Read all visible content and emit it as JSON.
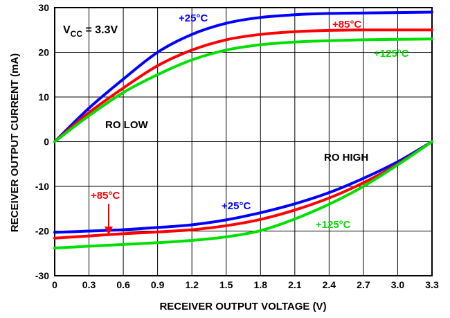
{
  "chart_data": {
    "type": "line",
    "title": "",
    "xlabel": "RECEIVER OUTPUT VOLTAGE (V)",
    "ylabel": "RECEIVER OUTPUT CURRENT (mA)",
    "xlim": [
      0,
      3.3
    ],
    "ylim": [
      -30,
      30
    ],
    "xticks": [
      "0",
      "0.3",
      "0.6",
      "0.9",
      "1.2",
      "1.5",
      "1.8",
      "2.1",
      "2.4",
      "2.7",
      "3.0",
      "3.3"
    ],
    "yticks": [
      "-30",
      "-20",
      "-10",
      "0",
      "10",
      "20",
      "30"
    ],
    "grid": true,
    "annotations": {
      "vcc": {
        "main": "V",
        "sub": "CC",
        "rest": " = 3.3V"
      },
      "ro_low": "RO LOW",
      "ro_high": "RO HIGH",
      "label_25_low": "+25°C",
      "label_85_low": "+85°C",
      "label_125_low": "+125°C",
      "label_25_high": "+25°C",
      "label_85_high": "+85°C",
      "label_125_high": "+125°C"
    },
    "colors": {
      "25": "#0000ff",
      "85": "#ff0000",
      "125": "#00e000"
    },
    "series": [
      {
        "name": "+25°C",
        "group": "RO LOW",
        "color": "#0000ff",
        "x": [
          0,
          0.3,
          0.6,
          0.9,
          1.2,
          1.5,
          1.8,
          2.1,
          2.4,
          2.7,
          3.0,
          3.3
        ],
        "y": [
          0,
          7.5,
          14,
          20,
          24,
          26.5,
          27.8,
          28.4,
          28.7,
          28.8,
          28.9,
          29
        ]
      },
      {
        "name": "+85°C",
        "group": "RO LOW",
        "color": "#ff0000",
        "x": [
          0,
          0.3,
          0.6,
          0.9,
          1.2,
          1.5,
          1.8,
          2.1,
          2.4,
          2.7,
          3.0,
          3.3
        ],
        "y": [
          0,
          6.5,
          12,
          17,
          20.5,
          22.8,
          24,
          24.6,
          24.9,
          25,
          25,
          25
        ]
      },
      {
        "name": "+125°C",
        "group": "RO LOW",
        "color": "#00e000",
        "x": [
          0,
          0.3,
          0.6,
          0.9,
          1.2,
          1.5,
          1.8,
          2.1,
          2.4,
          2.7,
          3.0,
          3.3
        ],
        "y": [
          0,
          5.8,
          11,
          15,
          18.3,
          20.5,
          21.7,
          22.3,
          22.6,
          22.8,
          22.9,
          23
        ]
      },
      {
        "name": "+25°C",
        "group": "RO HIGH",
        "color": "#0000ff",
        "x": [
          0,
          0.3,
          0.6,
          0.9,
          1.2,
          1.5,
          1.8,
          2.1,
          2.4,
          2.7,
          3.0,
          3.3
        ],
        "y": [
          -20.3,
          -20,
          -19.7,
          -19.2,
          -18.6,
          -17.5,
          -15.9,
          -13.9,
          -11.4,
          -8.2,
          -4.5,
          0
        ]
      },
      {
        "name": "+85°C",
        "group": "RO HIGH",
        "color": "#ff0000",
        "x": [
          0,
          0.3,
          0.6,
          0.9,
          1.2,
          1.5,
          1.8,
          2.1,
          2.4,
          2.7,
          3.0,
          3.3
        ],
        "y": [
          -21.6,
          -21.1,
          -20.6,
          -20.2,
          -19.7,
          -18.8,
          -17.4,
          -15.3,
          -12.6,
          -9.2,
          -5,
          0
        ]
      },
      {
        "name": "+125°C",
        "group": "RO HIGH",
        "color": "#00e000",
        "x": [
          0,
          0.3,
          0.6,
          0.9,
          1.2,
          1.5,
          1.8,
          2.1,
          2.4,
          2.7,
          3.0,
          3.3
        ],
        "y": [
          -23.8,
          -23.4,
          -23,
          -22.6,
          -22.1,
          -21.3,
          -19.9,
          -17.3,
          -14,
          -10,
          -5.2,
          0
        ]
      }
    ]
  }
}
